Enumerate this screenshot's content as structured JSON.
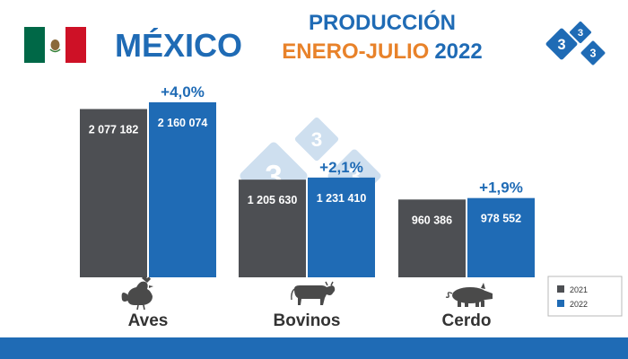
{
  "header": {
    "country": "MÉXICO",
    "title_line1": "PRODUCCIÓN",
    "title_line2_orange": "ENERO-JULIO",
    "title_line2_year": "2022",
    "logo_digit": "3"
  },
  "watermark_digit": "3",
  "icons": {
    "Aves": "chicken-icon",
    "Bovinos": "cow-icon",
    "Cerdo": "pig-icon"
  },
  "colors": {
    "series_2021": "#4d4f53",
    "series_2022": "#1f6bb5",
    "title_blue": "#1f6bb5",
    "title_orange": "#e8822a",
    "watermark": "#c9dcee",
    "flag_green": "#006847",
    "flag_red": "#ce1126"
  },
  "chart_data": {
    "type": "bar",
    "categories": [
      "Aves",
      "Bovinos",
      "Cerdo"
    ],
    "series": [
      {
        "name": "2021",
        "values": [
          2077182,
          1205630,
          960386
        ],
        "labels": [
          "2 077 182",
          "1 205 630",
          "960 386"
        ]
      },
      {
        "name": "2022",
        "values": [
          2160074,
          1231410,
          978552
        ],
        "labels": [
          "2 160 074",
          "1 231 410",
          "978 552"
        ]
      }
    ],
    "annotations": [
      "+4,0%",
      "+2,1%",
      "+1,9%"
    ],
    "ylim": [
      0,
      2160074
    ],
    "legend": "bottom-right",
    "grid": false,
    "title": "",
    "xlabel": "",
    "ylabel": ""
  }
}
